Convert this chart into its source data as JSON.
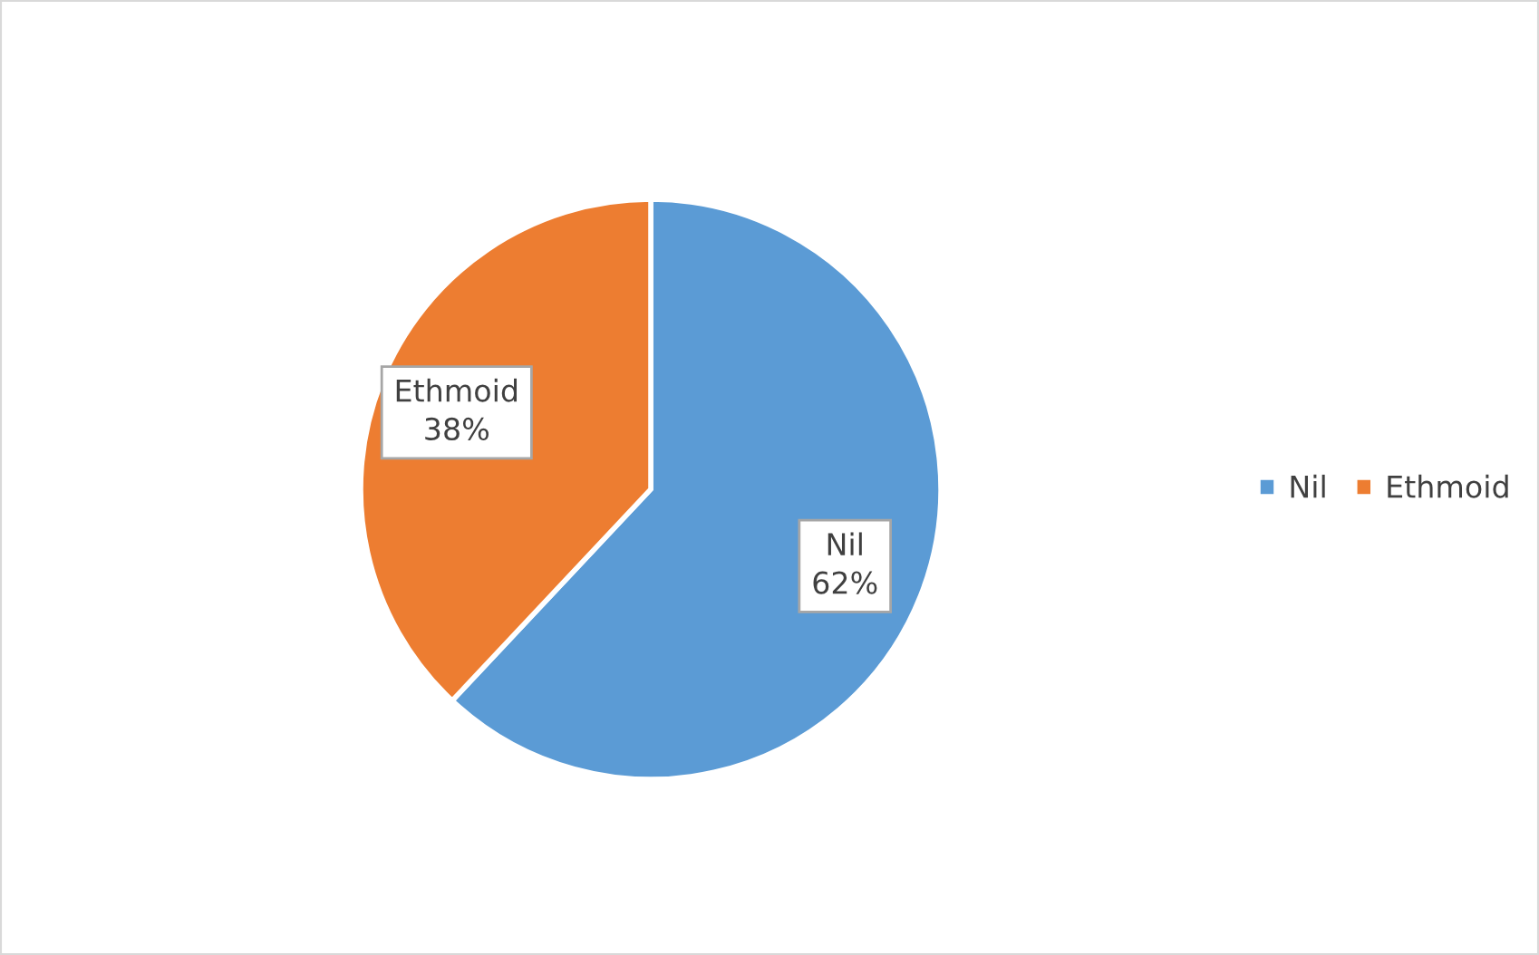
{
  "chart_data": {
    "type": "pie",
    "categories": [
      "Nil",
      "Ethmoid"
    ],
    "values": [
      62,
      38
    ],
    "colors": [
      "#5b9bd5",
      "#ed7d31"
    ],
    "value_labels": [
      "62%",
      "38%"
    ],
    "legend": "right"
  }
}
